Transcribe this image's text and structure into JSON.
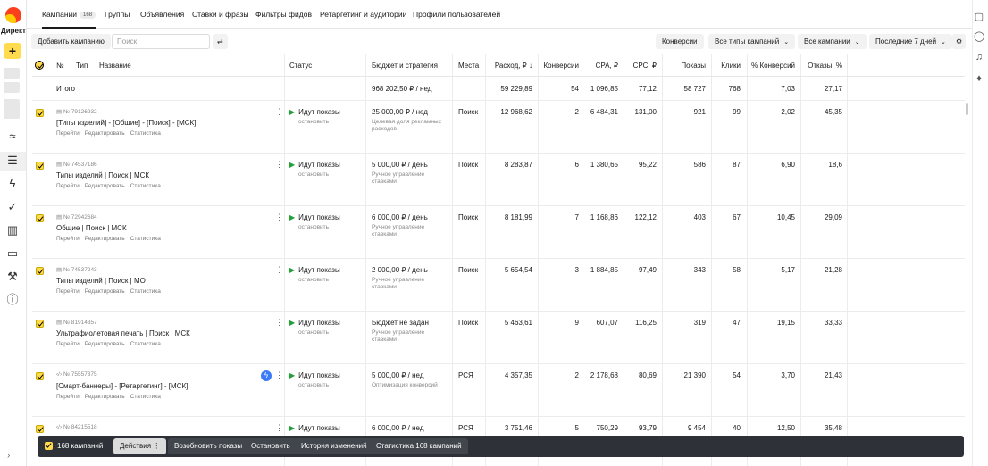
{
  "app": {
    "title": "Директ"
  },
  "tabs": [
    {
      "label": "Кампании",
      "count": "168"
    },
    {
      "label": "Группы"
    },
    {
      "label": "Объявления"
    },
    {
      "label": "Ставки и фразы"
    },
    {
      "label": "Фильтры фидов"
    },
    {
      "label": "Ретаргетинг и аудитории"
    },
    {
      "label": "Профили пользователей"
    }
  ],
  "toolbar": {
    "add_campaign": "Добавить кампанию",
    "search_placeholder": "Поиск",
    "conversions": "Конверсии",
    "campaign_types": "Все типы кампаний",
    "campaigns_filter": "Все кампании",
    "period": "Последние 7 дней"
  },
  "columns": {
    "num": "№",
    "type": "Тип",
    "name": "Название",
    "status": "Статус",
    "budget": "Бюджет и стратегия",
    "place": "Места",
    "spend": "Расход, ₽ ↓",
    "conv": "Конверсии",
    "cpa": "CPA, ₽",
    "cpc": "CPC, ₽",
    "shows": "Показы",
    "clicks": "Клики",
    "conv_pct": "% Конверсий",
    "bounce": "Отказы, %"
  },
  "total": {
    "label": "Итого",
    "budget": "968 202,50 ₽ / нед",
    "spend": "59 229,89",
    "conv": "54",
    "cpa": "1 096,85",
    "cpc": "77,12",
    "shows": "58 727",
    "clicks": "768",
    "conv_pct": "7,03",
    "bounce": "27,17"
  },
  "row_links": {
    "go": "Перейти",
    "edit": "Редактировать",
    "stats": "Статистика"
  },
  "campaigns": [
    {
      "id": "№ 79126932",
      "name": "[Типы изделий] - [Общие] - [Поиск] - [МСК]",
      "status": "Идут показы",
      "stop": "остановить",
      "budget": "25 000,00 ₽ / нед",
      "strategy": "Целевая доля рекламных расходов",
      "place": "Поиск",
      "spend": "12 968,62",
      "conv": "2",
      "cpa": "6 484,31",
      "cpc": "131,00",
      "shows": "921",
      "clicks": "99",
      "conv_pct": "2,02",
      "bounce": "45,35"
    },
    {
      "id": "№ 74537186",
      "name": "Типы изделий | Поиск | МСК",
      "status": "Идут показы",
      "stop": "остановить",
      "budget": "5 000,00 ₽ / день",
      "strategy": "Ручное управление ставками",
      "place": "Поиск",
      "spend": "8 283,87",
      "conv": "6",
      "cpa": "1 380,65",
      "cpc": "95,22",
      "shows": "586",
      "clicks": "87",
      "conv_pct": "6,90",
      "bounce": "18,6"
    },
    {
      "id": "№ 72942684",
      "name": "Общие | Поиск | МСК",
      "status": "Идут показы",
      "stop": "остановить",
      "budget": "6 000,00 ₽ / день",
      "strategy": "Ручное управление ставками",
      "place": "Поиск",
      "spend": "8 181,99",
      "conv": "7",
      "cpa": "1 168,86",
      "cpc": "122,12",
      "shows": "403",
      "clicks": "67",
      "conv_pct": "10,45",
      "bounce": "29,09"
    },
    {
      "id": "№ 74537243",
      "name": "Типы изделий | Поиск | МО",
      "status": "Идут показы",
      "stop": "остановить",
      "budget": "2 000,00 ₽ / день",
      "strategy": "Ручное управление ставками",
      "place": "Поиск",
      "spend": "5 654,54",
      "conv": "3",
      "cpa": "1 884,85",
      "cpc": "97,49",
      "shows": "343",
      "clicks": "58",
      "conv_pct": "5,17",
      "bounce": "21,28"
    },
    {
      "id": "№ 81914357",
      "name": "Ультрафиолетовая печать | Поиск | МСК",
      "status": "Идут показы",
      "stop": "остановить",
      "budget": "Бюджет не задан",
      "strategy": "Ручное управление ставками",
      "place": "Поиск",
      "spend": "5 463,61",
      "conv": "9",
      "cpa": "607,07",
      "cpc": "116,25",
      "shows": "319",
      "clicks": "47",
      "conv_pct": "19,15",
      "bounce": "33,33"
    },
    {
      "id": "№ 75557375",
      "name": "[Смарт-баннеры] - [Ретаргетинг] - [МСК]",
      "status": "Идут показы",
      "stop": "остановить",
      "budget": "5 000,00 ₽ / нед",
      "strategy": "Оптимизация конверсий",
      "place": "РСЯ",
      "spend": "4 357,35",
      "conv": "2",
      "cpa": "2 178,68",
      "cpc": "80,69",
      "shows": "21 390",
      "clicks": "54",
      "conv_pct": "3,70",
      "bounce": "21,43"
    },
    {
      "id": "№ 84215518",
      "name": "",
      "status": "Идут показы",
      "stop": "",
      "budget": "6 000,00 ₽ / нед",
      "strategy": "",
      "place": "РСЯ",
      "spend": "3 751,46",
      "conv": "5",
      "cpa": "750,29",
      "cpc": "93,79",
      "shows": "9 454",
      "clicks": "40",
      "conv_pct": "12,50",
      "bounce": "35,48"
    }
  ],
  "action_bar": {
    "selected": "168 кампаний",
    "actions": "Действия",
    "resume": "Возобновить показы",
    "stop": "Остановить",
    "history": "История изменений",
    "stats": "Статистика 168 кампаний"
  }
}
